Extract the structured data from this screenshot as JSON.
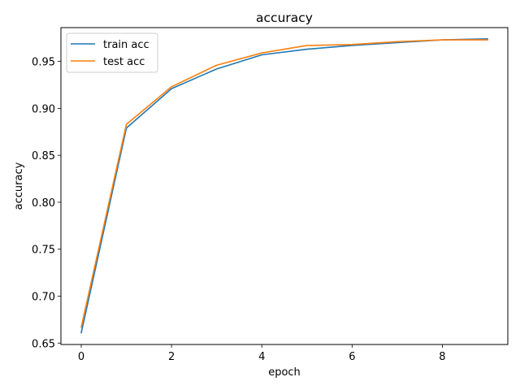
{
  "chart_data": {
    "type": "line",
    "title": "accuracy",
    "xlabel": "epoch",
    "ylabel": "accuracy",
    "xlim": [
      -0.45,
      9.45
    ],
    "ylim": [
      0.6485,
      0.986
    ],
    "x": [
      0,
      1,
      2,
      3,
      4,
      5,
      6,
      7,
      8,
      9
    ],
    "xticks": [
      0,
      2,
      4,
      6,
      8
    ],
    "yticks": [
      0.65,
      0.7,
      0.75,
      0.8,
      0.85,
      0.9,
      0.95
    ],
    "grid": false,
    "legend_position": "top-left",
    "series": [
      {
        "name": "train acc",
        "color": "#1f77b4",
        "values": [
          0.661,
          0.879,
          0.921,
          0.942,
          0.957,
          0.963,
          0.967,
          0.97,
          0.973,
          0.974
        ]
      },
      {
        "name": "test acc",
        "color": "#ff7f0e",
        "values": [
          0.667,
          0.883,
          0.923,
          0.946,
          0.959,
          0.967,
          0.968,
          0.971,
          0.973,
          0.973
        ]
      }
    ]
  }
}
